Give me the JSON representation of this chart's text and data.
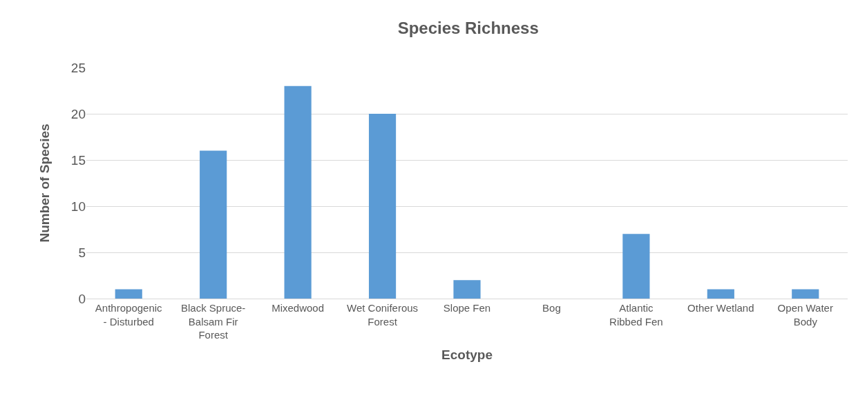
{
  "chart_data": {
    "type": "bar",
    "title": "Species Richness",
    "xlabel": "Ecotype",
    "ylabel": "Number of Species",
    "categories": [
      "Anthropogenic - Disturbed",
      "Black Spruce-Balsam Fir Forest",
      "Mixedwood",
      "Wet Coniferous Forest",
      "Slope Fen",
      "Bog",
      "Atlantic Ribbed Fen",
      "Other Wetland",
      "Open Water Body"
    ],
    "values": [
      1,
      16,
      23,
      20,
      2,
      0,
      7,
      1,
      1
    ],
    "color": "#5b9bd5",
    "ylim": [
      0,
      25
    ],
    "yticks": [
      0,
      5,
      10,
      15,
      20,
      25
    ],
    "grid": "y"
  }
}
